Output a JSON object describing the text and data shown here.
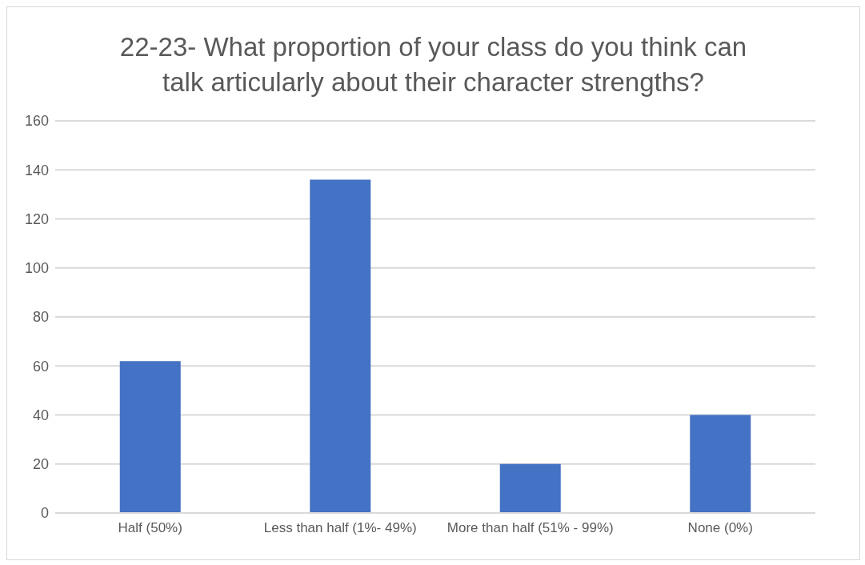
{
  "chart_data": {
    "type": "bar",
    "title": "22-23- What proportion of your class do you think can talk articularly about their character strengths?",
    "categories": [
      "Half (50%)",
      "Less than half (1%- 49%)",
      "More than half (51% - 99%)",
      "None (0%)"
    ],
    "values": [
      62,
      136,
      20,
      40
    ],
    "color": "#4472c4",
    "ylim": [
      0,
      160
    ],
    "yticks": [
      0,
      20,
      40,
      60,
      80,
      100,
      120,
      140,
      160
    ],
    "grid": "y"
  }
}
